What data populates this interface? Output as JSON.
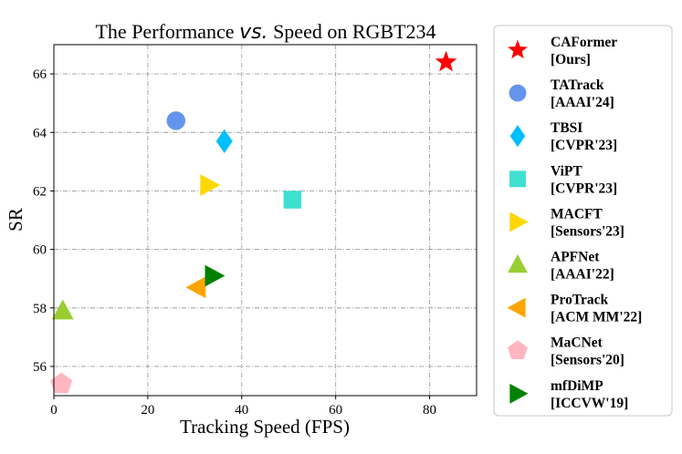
{
  "chart_data": {
    "type": "scatter",
    "title_prefix": "The Performance",
    "title_vs": "vs.",
    "title_suffix": "Speed on RGBT234",
    "xlabel": "Tracking Speed (FPS)",
    "ylabel": "SR",
    "xlim": [
      0,
      90
    ],
    "ylim": [
      55,
      67
    ],
    "xticks": [
      0,
      20,
      40,
      60,
      80
    ],
    "yticks": [
      56,
      58,
      60,
      62,
      64,
      66
    ],
    "grid": true,
    "legend_position": "outside-right",
    "series": [
      {
        "name": "CAFormer",
        "venue": "[Ours]",
        "x": 83.5,
        "y": 66.4,
        "marker": "star",
        "color": "#ff0000"
      },
      {
        "name": "TATrack",
        "venue": "[AAAI'24]",
        "x": 26,
        "y": 64.4,
        "marker": "circle",
        "color": "#6495ed"
      },
      {
        "name": "TBSI",
        "venue": "[CVPR'23]",
        "x": 36.3,
        "y": 63.7,
        "marker": "diamond",
        "color": "#00bfff"
      },
      {
        "name": "ViPT",
        "venue": "[CVPR'23]",
        "x": 50.8,
        "y": 61.7,
        "marker": "square",
        "color": "#40e0d0"
      },
      {
        "name": "MACFT",
        "venue": "[Sensors'23]",
        "x": 33,
        "y": 62.2,
        "marker": "triangle-right",
        "color": "#ffd700"
      },
      {
        "name": "APFNet",
        "venue": "[AAAI'22]",
        "x": 1.9,
        "y": 57.9,
        "marker": "triangle-up",
        "color": "#9acd32"
      },
      {
        "name": "ProTrack",
        "venue": "[ACM MM'22]",
        "x": 30.5,
        "y": 58.7,
        "marker": "triangle-left",
        "color": "#ffa500"
      },
      {
        "name": "MaCNet",
        "venue": "[Sensors'20]",
        "x": 1.6,
        "y": 55.4,
        "marker": "pentagon",
        "color": "#ffb6c1"
      },
      {
        "name": "mfDiMP",
        "venue": "[ICCVW'19]",
        "x": 34,
        "y": 59.1,
        "marker": "triangle-right",
        "color": "#008000"
      }
    ]
  }
}
